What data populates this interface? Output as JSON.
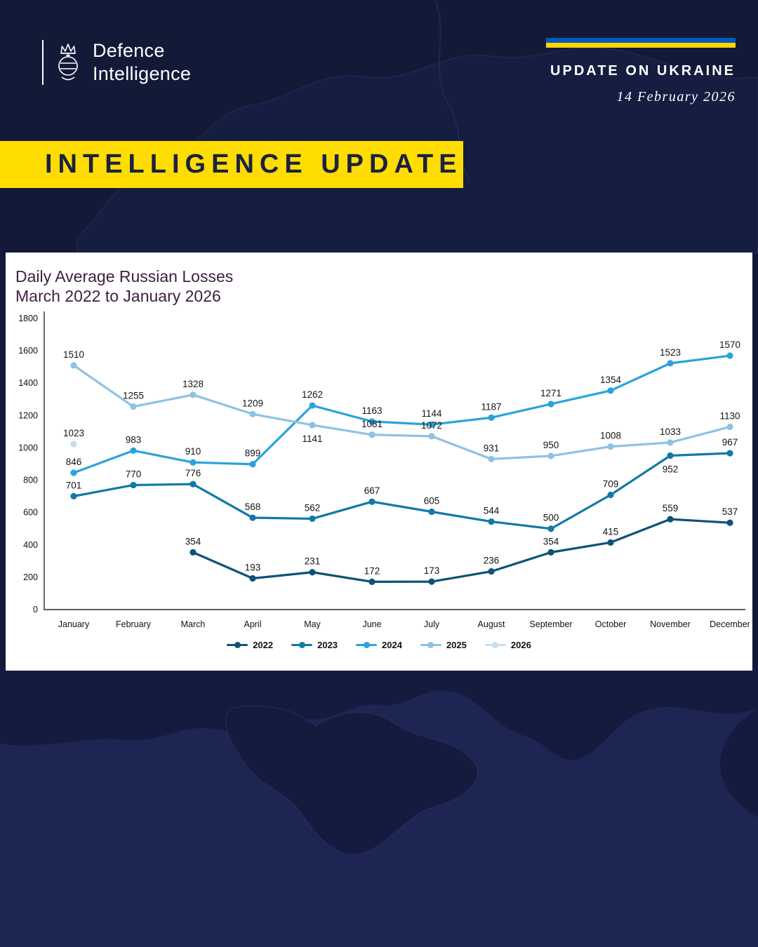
{
  "header": {
    "logo_line1": "Defence",
    "logo_line2": "Intelligence",
    "update_title": "UPDATE ON UKRAINE",
    "date": "14 February 2026"
  },
  "banner": {
    "text": "INTELLIGENCE UPDATE"
  },
  "colors": {
    "background": "#131a38",
    "banner_yellow": "#ffdd00",
    "banner_text": "#1b2142",
    "flag_blue": "#005bbb",
    "flag_yellow": "#ffd500",
    "panel_bg": "#ffffff",
    "chart_title": "#3f2140"
  },
  "chart_data": {
    "type": "line",
    "title_line1": "Daily Average Russian Losses",
    "title_line2": "March 2022 to January 2026",
    "categories": [
      "January",
      "February",
      "March",
      "April",
      "May",
      "June",
      "July",
      "August",
      "September",
      "October",
      "November",
      "December"
    ],
    "ylim": [
      0,
      1800
    ],
    "ytick_step": 200,
    "grid": false,
    "legend_position": "bottom",
    "series": [
      {
        "name": "2022",
        "color": "#0d5277",
        "values": [
          null,
          null,
          354,
          193,
          231,
          172,
          173,
          236,
          354,
          415,
          559,
          537
        ]
      },
      {
        "name": "2023",
        "color": "#1379a7",
        "values": [
          701,
          770,
          776,
          568,
          562,
          667,
          605,
          544,
          500,
          709,
          952,
          967
        ]
      },
      {
        "name": "2024",
        "color": "#2aa3dc",
        "values": [
          846,
          983,
          910,
          899,
          1262,
          1163,
          1144,
          1187,
          1271,
          1354,
          1523,
          1570
        ]
      },
      {
        "name": "2025",
        "color": "#8fc2e2",
        "values": [
          1510,
          1255,
          1328,
          1209,
          1141,
          1081,
          1072,
          931,
          950,
          1008,
          1033,
          1130
        ]
      },
      {
        "name": "2026",
        "color": "#c7dcee",
        "values": [
          1023,
          null,
          null,
          null,
          null,
          null,
          null,
          null,
          null,
          null,
          null,
          null
        ]
      }
    ],
    "labels_below": [
      [
        "2025",
        "May"
      ],
      [
        "2023",
        "November"
      ]
    ]
  }
}
